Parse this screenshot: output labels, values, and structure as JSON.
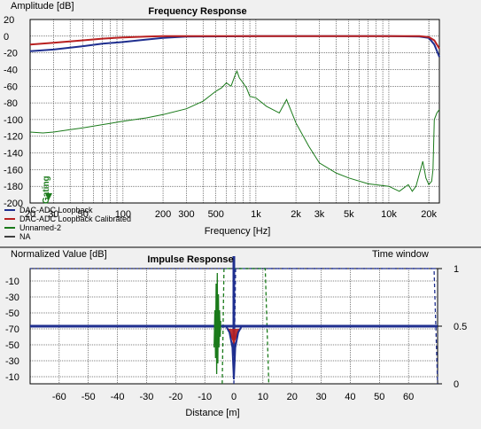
{
  "chart_data": [
    {
      "type": "line",
      "title": "Frequency Response",
      "ylabel": "Amplitude [dB]",
      "xlabel": "Frequency [Hz]",
      "xscale": "log",
      "xlim": [
        20,
        24000
      ],
      "ylim": [
        -200,
        20
      ],
      "xticks": [
        {
          "v": 20,
          "label": "20"
        },
        {
          "v": 30,
          "label": "30"
        },
        {
          "v": 50,
          "label": "50"
        },
        {
          "v": 100,
          "label": "100"
        },
        {
          "v": 200,
          "label": "200"
        },
        {
          "v": 300,
          "label": "300"
        },
        {
          "v": 500,
          "label": "500"
        },
        {
          "v": 1000,
          "label": "1k"
        },
        {
          "v": 2000,
          "label": "2k"
        },
        {
          "v": 3000,
          "label": "3k"
        },
        {
          "v": 5000,
          "label": "5k"
        },
        {
          "v": 10000,
          "label": "10k"
        },
        {
          "v": 20000,
          "label": "20k"
        }
      ],
      "yticks": [
        20,
        0,
        -20,
        -40,
        -60,
        -80,
        -100,
        -120,
        -140,
        -160,
        -180,
        -200
      ],
      "grid": true,
      "legend_position": "bottom-left",
      "series": [
        {
          "name": "DAC-ADC Loopback",
          "color": "#1f2f8f",
          "x": [
            20,
            30,
            50,
            70,
            100,
            150,
            200,
            300,
            1000,
            10000,
            17000,
            20000,
            22000,
            24000
          ],
          "y": [
            -18,
            -16,
            -12,
            -9,
            -7,
            -4,
            -2,
            -0.5,
            0,
            0,
            -0.5,
            -2,
            -10,
            -25
          ]
        },
        {
          "name": "DAC-ADC Loopback Calibrated",
          "color": "#b82020",
          "x": [
            20,
            30,
            50,
            70,
            100,
            150,
            200,
            1000,
            10000,
            17000,
            20000,
            22000,
            24000
          ],
          "y": [
            -10,
            -8,
            -5,
            -3,
            -1.5,
            -0.5,
            0,
            0,
            0,
            0,
            -1,
            -5,
            -15
          ]
        },
        {
          "name": "Unnamed-2",
          "color": "#1a7a1a",
          "x": [
            20,
            25,
            30,
            40,
            50,
            70,
            100,
            150,
            200,
            300,
            400,
            500,
            550,
            600,
            650,
            700,
            720,
            750,
            800,
            850,
            900,
            1000,
            1200,
            1500,
            1700,
            2000,
            2500,
            3000,
            4000,
            5000,
            7000,
            10000,
            12000,
            14000,
            15000,
            16000,
            18000,
            19000,
            20000,
            20500,
            21000,
            21500,
            22000,
            23000,
            24000
          ],
          "y": [
            -115,
            -116,
            -115,
            -112,
            -110,
            -106,
            -102,
            -98,
            -94,
            -87,
            -78,
            -66,
            -62,
            -56,
            -60,
            -46,
            -42,
            -50,
            -56,
            -62,
            -72,
            -74,
            -84,
            -92,
            -76,
            -104,
            -132,
            -152,
            -164,
            -170,
            -177,
            -180,
            -186,
            -178,
            -186,
            -180,
            -150,
            -170,
            -178,
            -176,
            -174,
            -160,
            -100,
            -92,
            -88
          ]
        },
        {
          "name": "NA",
          "color": "#404040",
          "x": [],
          "y": []
        }
      ],
      "annotation": "Gating"
    },
    {
      "type": "line",
      "title": "Impulse Response",
      "ylabel": "Normalized Value [dB]",
      "xlabel": "Distance [m]",
      "y2label": "Time window",
      "xlim": [
        -70,
        70
      ],
      "xticks": [
        -60,
        -50,
        -40,
        -30,
        -20,
        -10,
        0,
        10,
        20,
        30,
        40,
        50,
        60
      ],
      "yticks": [
        "-10",
        "-30",
        "-50",
        "-70",
        "-50",
        "-30",
        "-10"
      ],
      "y2ticks": [
        {
          "v": 1,
          "label": "1"
        },
        {
          "v": 0.5,
          "label": "0.5"
        },
        {
          "v": 0,
          "label": "0"
        }
      ],
      "grid": true,
      "series": [
        {
          "color": "#1a7a1a",
          "x": [
            -6.8,
            -6.5,
            -6.3,
            -6.1,
            -5.9,
            -5.7,
            -5.5,
            -5.3,
            -5.1,
            -4.9,
            -4.7,
            -4.5
          ],
          "y": [
            -40,
            30,
            -60,
            80,
            -90,
            100,
            -70,
            60,
            -40,
            30,
            -20,
            10
          ]
        },
        {
          "color": "#b82020",
          "x": [
            -2,
            -1,
            0,
            1,
            2
          ],
          "y": [
            -5,
            -15,
            -30,
            -15,
            -5
          ]
        },
        {
          "color": "#1f2f8f",
          "x": [
            -2.5,
            -1.5,
            -0.5,
            0,
            0.5,
            1.5,
            2.5
          ],
          "y": [
            -2,
            -12,
            -40,
            -100,
            -40,
            -12,
            -2
          ]
        }
      ],
      "time_windows": [
        {
          "color": "#1f2f8f",
          "style": "dashed",
          "from": 0,
          "to": 70
        },
        {
          "color": "#1a7a1a",
          "style": "dashed",
          "from": -4,
          "to": 12
        }
      ],
      "markers": [
        {
          "color": "#1f2f8f",
          "y": 0.5
        }
      ]
    }
  ]
}
